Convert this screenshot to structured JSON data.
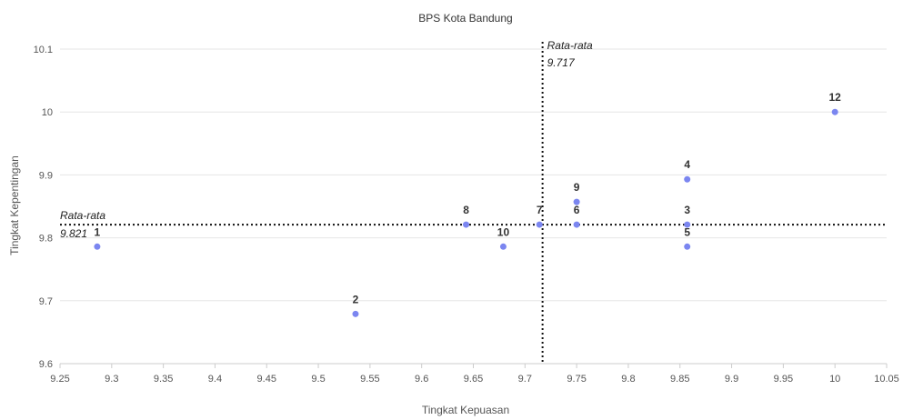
{
  "chart_data": {
    "type": "scatter",
    "title": "BPS Kota Bandung",
    "xlabel": "Tingkat Kepuasan",
    "ylabel": "Tingkat Kepentingan",
    "xlim": [
      9.25,
      10.05
    ],
    "ylim": [
      9.6,
      10.1
    ],
    "x_ticks": [
      "9.25",
      "9.3",
      "9.35",
      "9.4",
      "9.45",
      "9.5",
      "9.55",
      "9.6",
      "9.65",
      "9.7",
      "9.75",
      "9.8",
      "9.85",
      "9.9",
      "9.95",
      "10",
      "10.05"
    ],
    "y_ticks": [
      "9.6",
      "9.7",
      "9.8",
      "9.9",
      "10",
      "10.1"
    ],
    "grid": true,
    "points": [
      {
        "label": "1",
        "x": 9.286,
        "y": 9.786
      },
      {
        "label": "2",
        "x": 9.536,
        "y": 9.679
      },
      {
        "label": "3",
        "x": 9.857,
        "y": 9.821
      },
      {
        "label": "4",
        "x": 9.857,
        "y": 9.893
      },
      {
        "label": "5",
        "x": 9.857,
        "y": 9.786
      },
      {
        "label": "6",
        "x": 9.75,
        "y": 9.821
      },
      {
        "label": "7",
        "x": 9.714,
        "y": 9.821
      },
      {
        "label": "8",
        "x": 9.643,
        "y": 9.821
      },
      {
        "label": "9",
        "x": 9.75,
        "y": 9.857
      },
      {
        "label": "10",
        "x": 9.679,
        "y": 9.786
      },
      {
        "label": "12",
        "x": 10.0,
        "y": 10.0
      }
    ],
    "reference_lines": {
      "x": {
        "label": "Rata-rata",
        "value": 9.717,
        "value_text": "9.717"
      },
      "y": {
        "label": "Rata-rata",
        "value": 9.821,
        "value_text": "9.821"
      }
    },
    "point_color": "#7b86f0"
  }
}
